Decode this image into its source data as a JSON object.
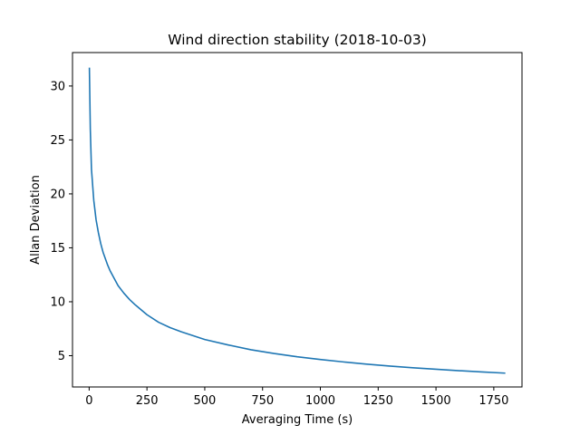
{
  "chart_data": {
    "type": "line",
    "title": "Wind direction stability (2018-10-03)",
    "xlabel": "Averaging Time (s)",
    "ylabel": "Allan Deviation",
    "xlim": [
      -72,
      1872
    ],
    "ylim": [
      2.1,
      33.1
    ],
    "xticks": [
      0,
      250,
      500,
      750,
      1000,
      1250,
      1500,
      1750
    ],
    "yticks": [
      5,
      10,
      15,
      20,
      25,
      30
    ],
    "grid": false,
    "legend": "none",
    "series": [
      {
        "color": "#1f77b4",
        "x": [
          1,
          5,
          10,
          20,
          30,
          40,
          50,
          60,
          70,
          80,
          90,
          100,
          125,
          150,
          175,
          200,
          250,
          300,
          350,
          400,
          500,
          600,
          700,
          800,
          900,
          1000,
          1100,
          1200,
          1300,
          1400,
          1500,
          1600,
          1700,
          1800
        ],
        "y": [
          31.7,
          26.0,
          22.3,
          19.4,
          17.6,
          16.4,
          15.4,
          14.6,
          14.0,
          13.4,
          12.9,
          12.5,
          11.5,
          10.8,
          10.2,
          9.7,
          8.8,
          8.1,
          7.6,
          7.2,
          6.5,
          6.0,
          5.55,
          5.2,
          4.9,
          4.65,
          4.42,
          4.22,
          4.04,
          3.88,
          3.74,
          3.61,
          3.49,
          3.38
        ]
      }
    ]
  }
}
